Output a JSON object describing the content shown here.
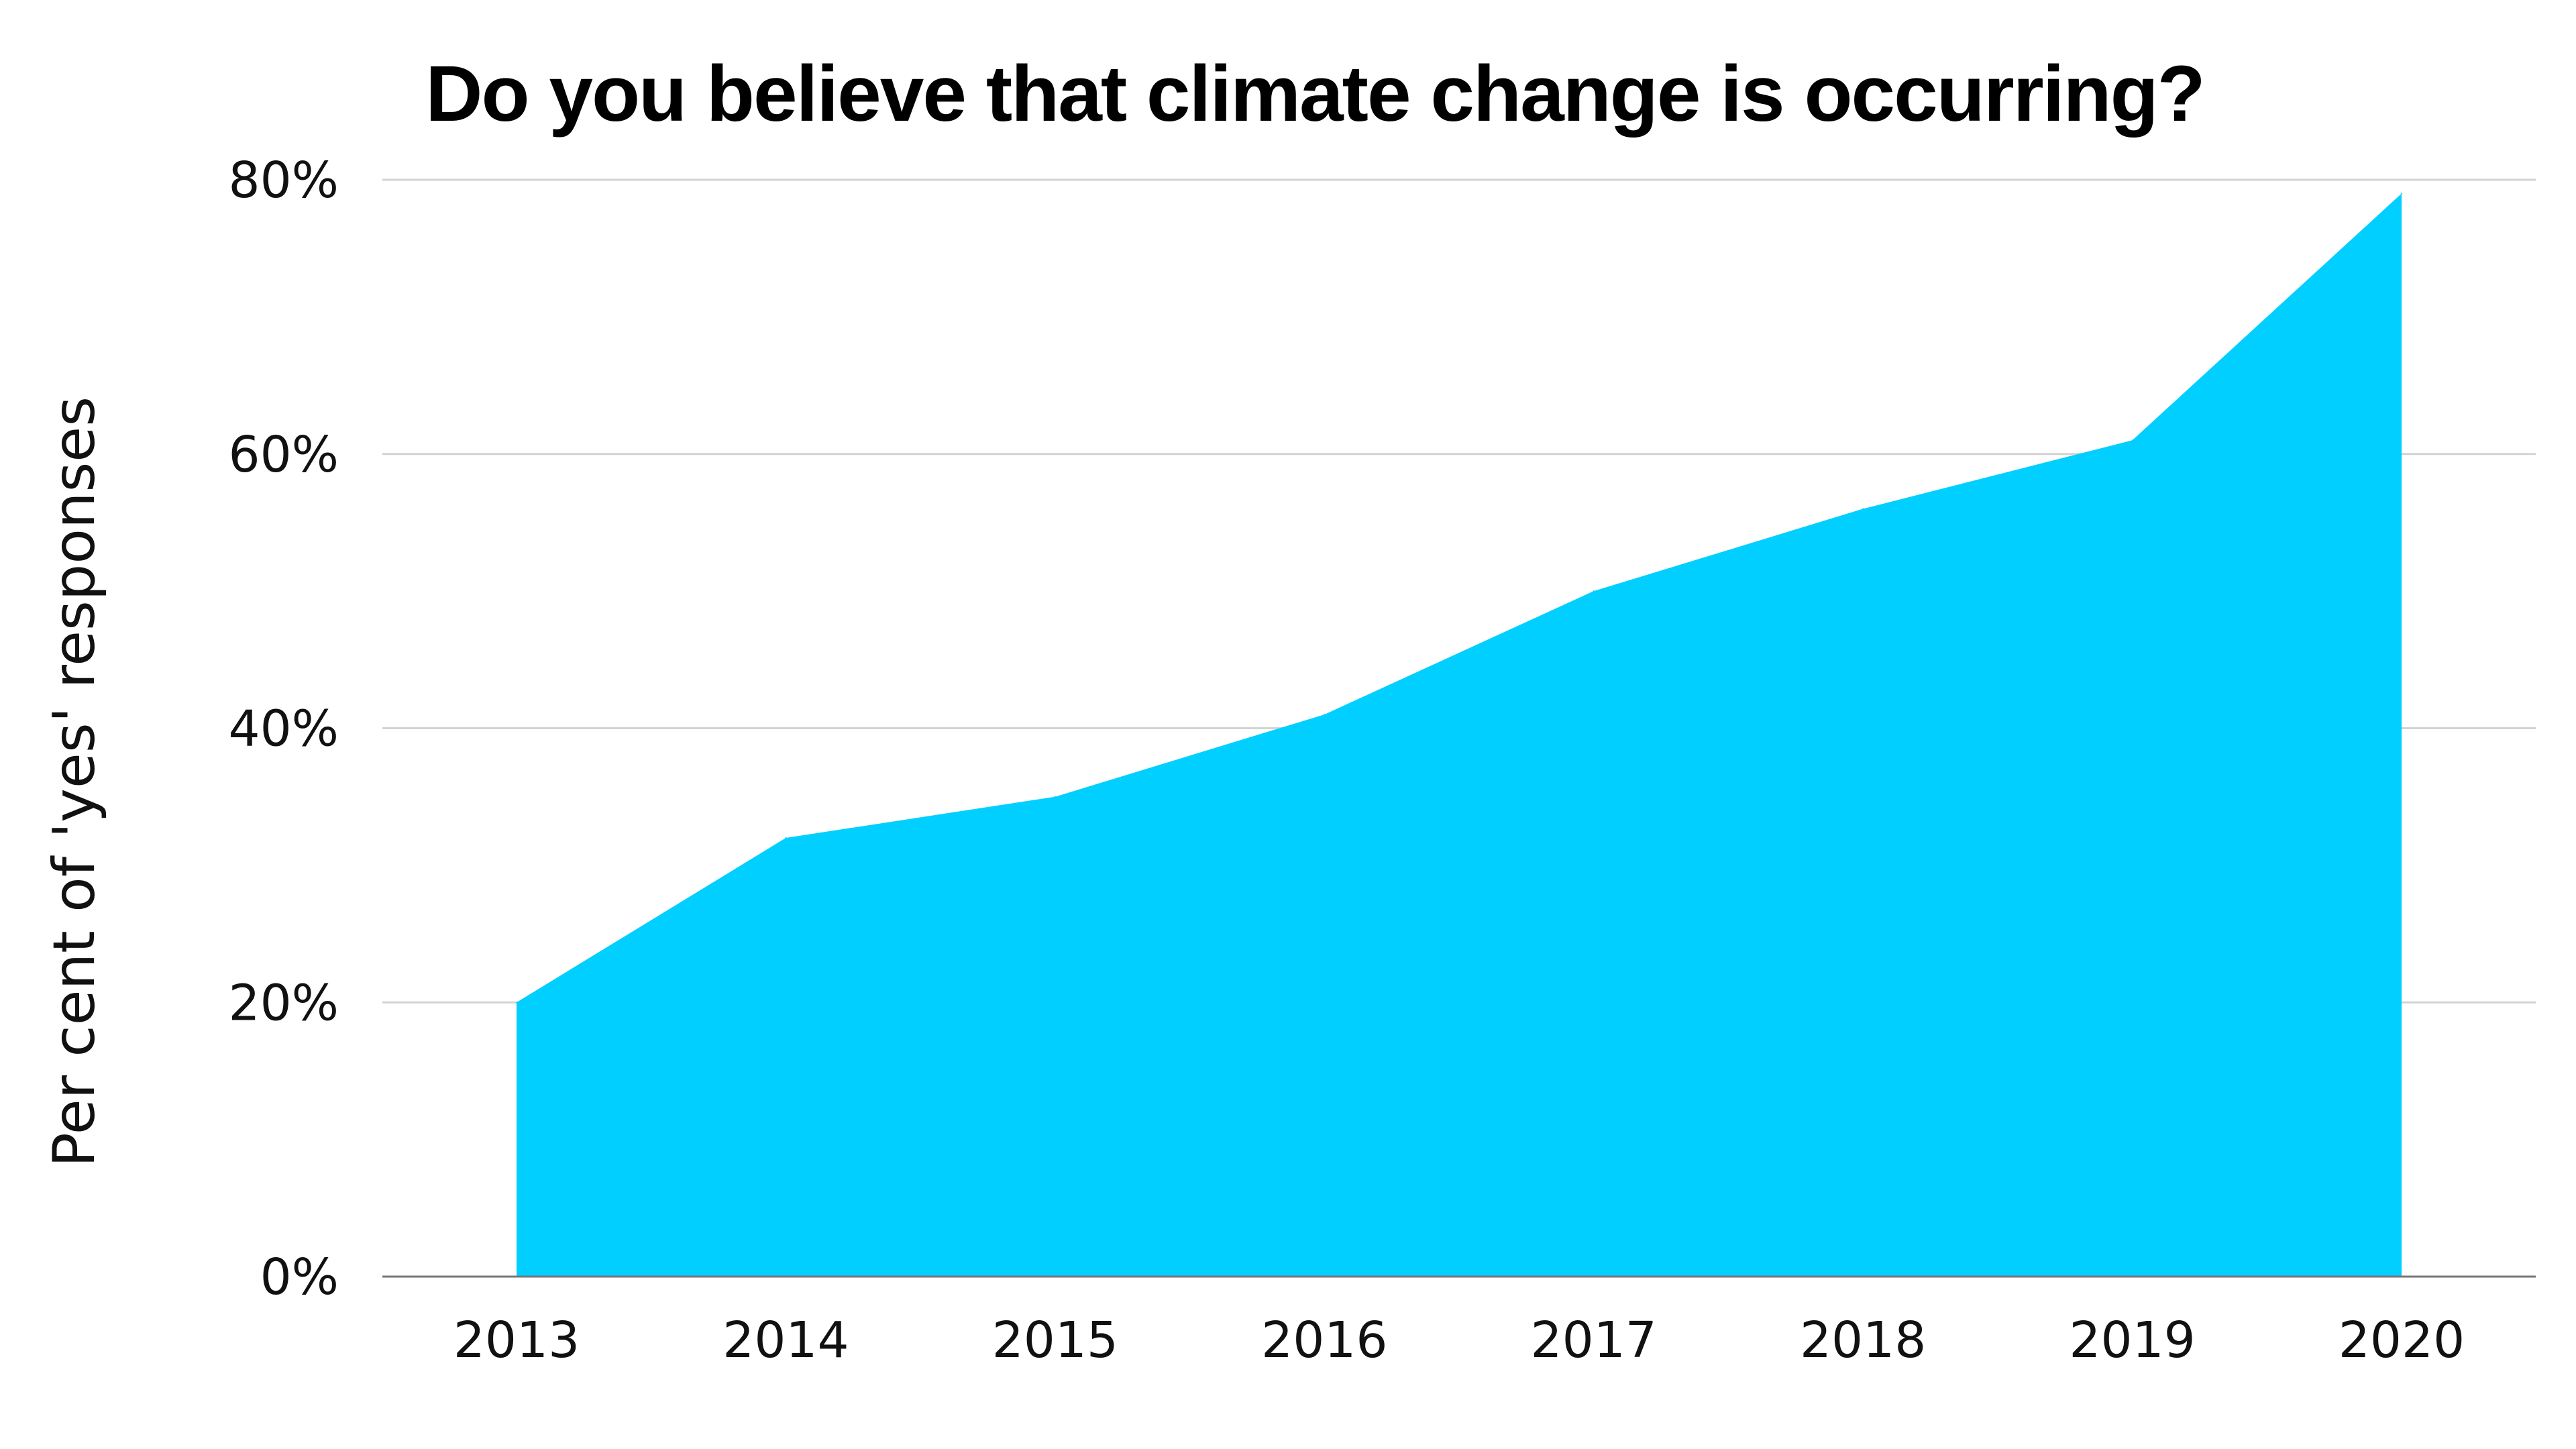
{
  "chart_data": {
    "type": "area",
    "title": "Do you believe that climate change is occurring?",
    "xlabel": "",
    "ylabel": "Per cent of 'yes' responses",
    "categories": [
      "2013",
      "2014",
      "2015",
      "2016",
      "2017",
      "2018",
      "2019",
      "2020"
    ],
    "series": [
      {
        "values": [
          20,
          32,
          35,
          41,
          50,
          56,
          61,
          79
        ],
        "color": "#00cfff"
      }
    ],
    "ylim": [
      0,
      80
    ],
    "yticks": [
      0,
      20,
      40,
      60,
      80
    ],
    "ytick_labels": [
      "0%",
      "20%",
      "40%",
      "60%",
      "80%"
    ],
    "grid": true,
    "legend": "none"
  }
}
